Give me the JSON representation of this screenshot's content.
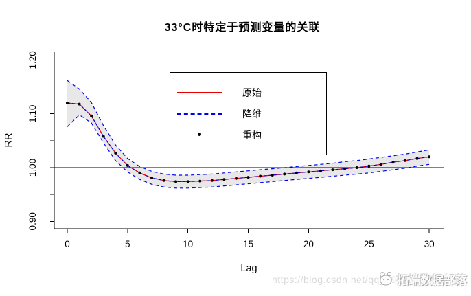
{
  "title": "33°C时特定于预测变量的关联",
  "axes": {
    "x": {
      "label": "Lag",
      "ticks": [
        {
          "value": 0,
          "label": "0"
        },
        {
          "value": 5,
          "label": "5"
        },
        {
          "value": 10,
          "label": "10"
        },
        {
          "value": 15,
          "label": "15"
        },
        {
          "value": 20,
          "label": "20"
        },
        {
          "value": 25,
          "label": "25"
        },
        {
          "value": 30,
          "label": "30"
        }
      ]
    },
    "y": {
      "label": "RR",
      "ticks": [
        {
          "value": 0.9,
          "label": "0.90"
        },
        {
          "value": 0.95,
          "label": ""
        },
        {
          "value": 1.0,
          "label": "1.00"
        },
        {
          "value": 1.05,
          "label": ""
        },
        {
          "value": 1.1,
          "label": "1.10"
        },
        {
          "value": 1.15,
          "label": ""
        },
        {
          "value": 1.2,
          "label": "1.20"
        }
      ]
    }
  },
  "legend": {
    "items": [
      {
        "label": "原始",
        "sample": "solid-line",
        "color": "#e60000"
      },
      {
        "label": "降维",
        "sample": "dashed-line",
        "color": "#0000ee"
      },
      {
        "label": "重构",
        "sample": "point",
        "color": "#000000"
      }
    ]
  },
  "colors": {
    "original_line": "#ff0000",
    "reduced_line": "#0000ee",
    "points": "#000000",
    "band_fill": "#e8e8e8",
    "reference_line": "#000000",
    "axis": "#000000"
  },
  "chart_data": {
    "type": "line",
    "title": "33°C时特定于预测变量的关联",
    "xlabel": "Lag",
    "ylabel": "RR",
    "xlim": [
      0,
      30
    ],
    "ylim": [
      0.886,
      1.216
    ],
    "grid": false,
    "legend_position": "upper-center-left",
    "reference_line_y": 1.0,
    "x": [
      0,
      1,
      2,
      3,
      4,
      5,
      6,
      7,
      8,
      9,
      10,
      11,
      12,
      13,
      14,
      15,
      16,
      17,
      18,
      19,
      20,
      21,
      22,
      23,
      24,
      25,
      26,
      27,
      28,
      29,
      30
    ],
    "center_rr": [
      1.12,
      1.118,
      1.096,
      1.058,
      1.027,
      1.004,
      0.99,
      0.981,
      0.976,
      0.974,
      0.974,
      0.975,
      0.976,
      0.978,
      0.98,
      0.982,
      0.984,
      0.986,
      0.988,
      0.99,
      0.992,
      0.994,
      0.996,
      0.998,
      1.0,
      1.003,
      1.006,
      1.01,
      1.013,
      1.017,
      1.02
    ],
    "band_lower": [
      1.076,
      1.098,
      1.083,
      1.046,
      1.013,
      0.992,
      0.978,
      0.969,
      0.964,
      0.962,
      0.962,
      0.963,
      0.964,
      0.966,
      0.968,
      0.97,
      0.972,
      0.974,
      0.976,
      0.978,
      0.98,
      0.982,
      0.984,
      0.986,
      0.988,
      0.99,
      0.993,
      0.996,
      0.999,
      1.003,
      1.006
    ],
    "band_upper": [
      1.162,
      1.146,
      1.121,
      1.078,
      1.042,
      1.017,
      1.002,
      0.993,
      0.988,
      0.986,
      0.986,
      0.987,
      0.988,
      0.99,
      0.992,
      0.994,
      0.996,
      0.998,
      1.0,
      1.002,
      1.004,
      1.006,
      1.008,
      1.011,
      1.013,
      1.016,
      1.019,
      1.022,
      1.025,
      1.029,
      1.033
    ],
    "series": [
      {
        "name": "原始",
        "style": "solid",
        "color": "#ff0000",
        "uses": "center_rr",
        "has_band": true
      },
      {
        "name": "降维",
        "style": "dashed",
        "color": "#0000ee",
        "uses": "center_rr",
        "band_edges": "dashed"
      },
      {
        "name": "重构",
        "style": "points",
        "color": "#000000",
        "uses": "center_rr"
      }
    ]
  },
  "watermark": {
    "url_text": "https://blog.csdn.net/qq_19600291",
    "brand": "拓端数据部落"
  }
}
